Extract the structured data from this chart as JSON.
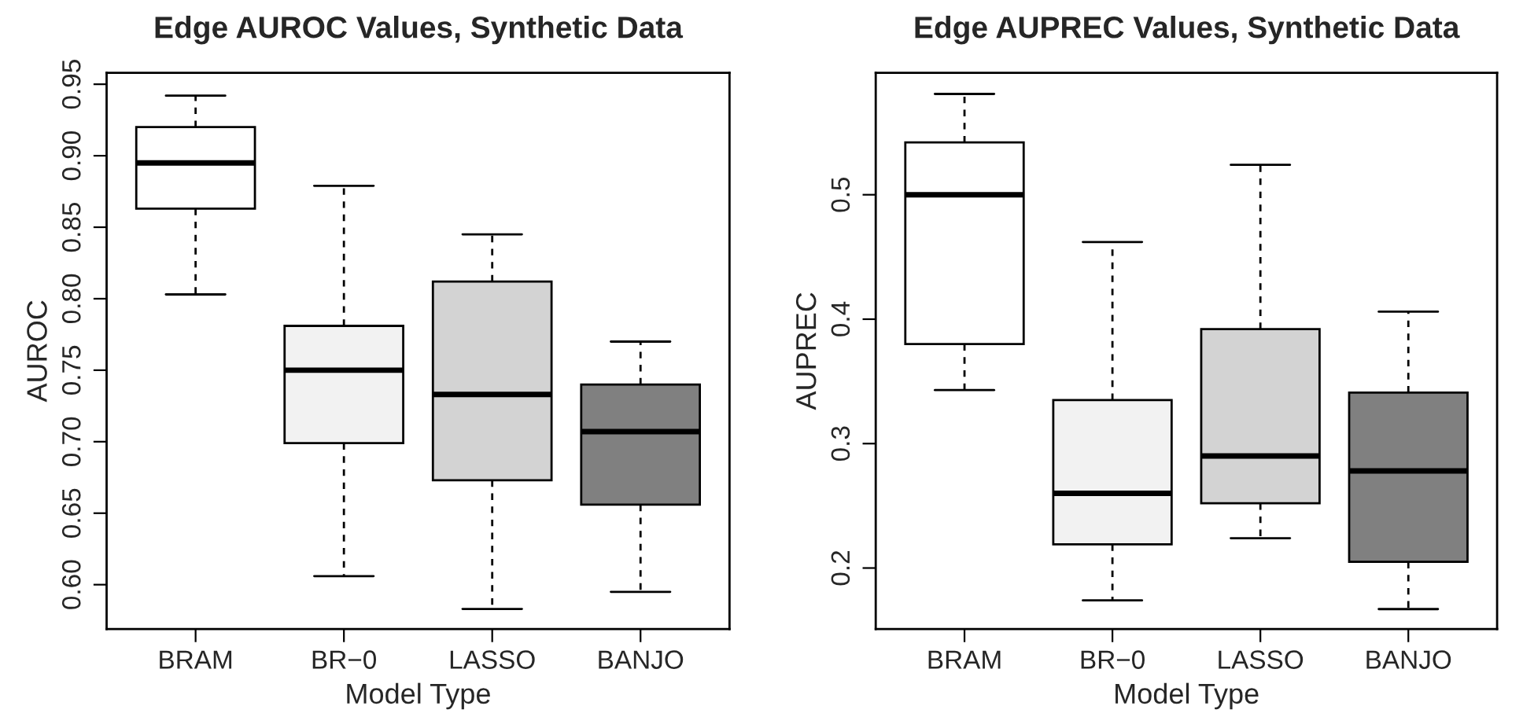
{
  "chart_data": [
    {
      "type": "box",
      "title": "Edge AUROC Values, Synthetic Data",
      "xlabel": "Model Type",
      "ylabel": "AUROC",
      "categories": [
        "BRAM",
        "BR−0",
        "LASSO",
        "BANJO"
      ],
      "colors": [
        "#ffffff",
        "#f2f2f2",
        "#d3d3d3",
        "#808080"
      ],
      "ylim": [
        0.569,
        0.958
      ],
      "yticks": [
        {
          "value": 0.6,
          "label": "0.60"
        },
        {
          "value": 0.65,
          "label": "0.65"
        },
        {
          "value": 0.7,
          "label": "0.70"
        },
        {
          "value": 0.75,
          "label": "0.75"
        },
        {
          "value": 0.8,
          "label": "0.80"
        },
        {
          "value": 0.85,
          "label": "0.85"
        },
        {
          "value": 0.9,
          "label": "0.90"
        },
        {
          "value": 0.95,
          "label": "0.95"
        }
      ],
      "grid": false,
      "boxes": [
        {
          "low": 0.803,
          "q1": 0.863,
          "median": 0.895,
          "q3": 0.92,
          "high": 0.942
        },
        {
          "low": 0.606,
          "q1": 0.699,
          "median": 0.75,
          "q3": 0.781,
          "high": 0.879
        },
        {
          "low": 0.583,
          "q1": 0.673,
          "median": 0.733,
          "q3": 0.812,
          "high": 0.845
        },
        {
          "low": 0.595,
          "q1": 0.656,
          "median": 0.707,
          "q3": 0.74,
          "high": 0.77
        }
      ]
    },
    {
      "type": "box",
      "title": "Edge AUPREC Values, Synthetic Data",
      "xlabel": "Model Type",
      "ylabel": "AUPREC",
      "categories": [
        "BRAM",
        "BR−0",
        "LASSO",
        "BANJO"
      ],
      "colors": [
        "#ffffff",
        "#f2f2f2",
        "#d3d3d3",
        "#808080"
      ],
      "ylim": [
        0.151,
        0.598
      ],
      "yticks": [
        0.2,
        0.3,
        0.4,
        0.5
      ],
      "grid": false,
      "boxes": [
        {
          "low": 0.343,
          "q1": 0.38,
          "median": 0.5,
          "q3": 0.542,
          "high": 0.581
        },
        {
          "low": 0.174,
          "q1": 0.219,
          "median": 0.26,
          "q3": 0.335,
          "high": 0.462
        },
        {
          "low": 0.224,
          "q1": 0.252,
          "median": 0.29,
          "q3": 0.392,
          "high": 0.524
        },
        {
          "low": 0.167,
          "q1": 0.205,
          "median": 0.278,
          "q3": 0.341,
          "high": 0.406
        }
      ]
    }
  ]
}
